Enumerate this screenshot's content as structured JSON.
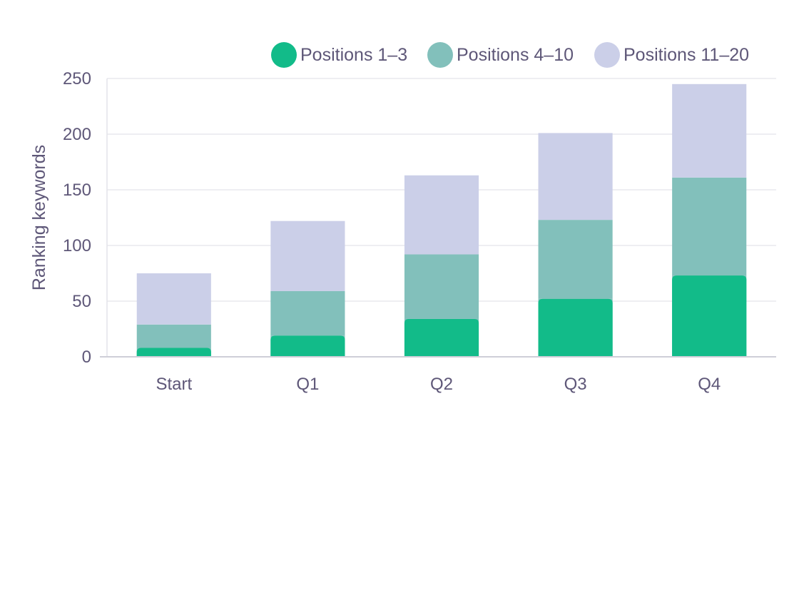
{
  "chart_data": {
    "type": "bar",
    "stacked": true,
    "title": "",
    "xlabel": "",
    "ylabel": "Ranking keywords",
    "categories": [
      "Start",
      "Q1",
      "Q2",
      "Q3",
      "Q4"
    ],
    "ylim": [
      0,
      250
    ],
    "yticks": [
      0,
      50,
      100,
      150,
      200,
      250
    ],
    "grid": true,
    "legend_position": "top-right",
    "series": [
      {
        "name": "Positions 1–3",
        "values": [
          8,
          19,
          34,
          52,
          73
        ],
        "color": "#12bb89"
      },
      {
        "name": "Positions 4–10",
        "values": [
          21,
          40,
          58,
          71,
          88
        ],
        "color": "#82c0bb"
      },
      {
        "name": "Positions 11–20",
        "values": [
          46,
          63,
          71,
          78,
          84
        ],
        "color": "#cbcfe8"
      }
    ]
  }
}
